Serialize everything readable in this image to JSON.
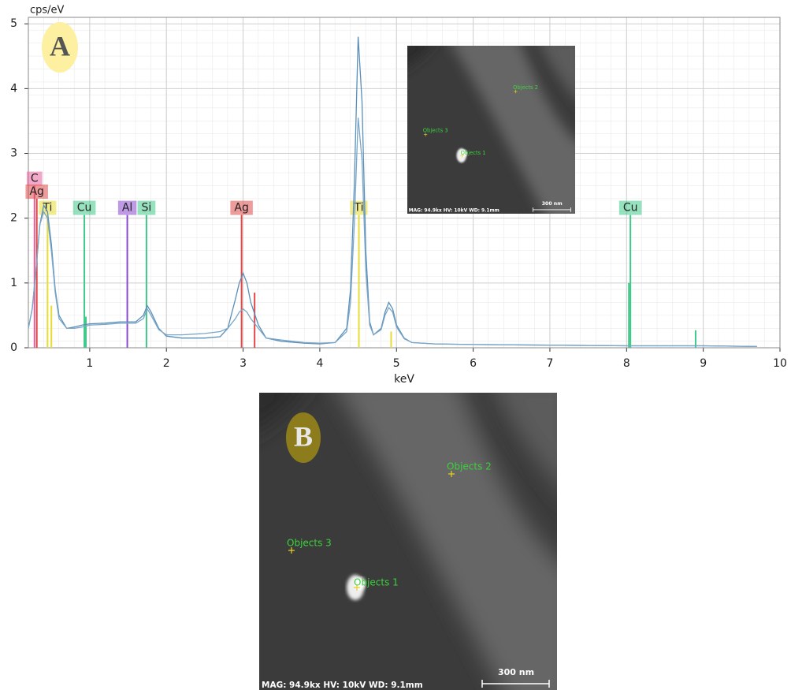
{
  "panel_labels": {
    "a": "A",
    "b": "B"
  },
  "chart_data": {
    "type": "line",
    "x_label": "keV",
    "y_label": "cps/eV",
    "xlim": [
      0.2,
      10
    ],
    "ylim": [
      0,
      5.1
    ],
    "xticks": [
      1,
      2,
      3,
      4,
      5,
      6,
      7,
      8,
      9,
      10
    ],
    "yticks": [
      0,
      1,
      2,
      3,
      4,
      5
    ],
    "grid": true,
    "series": [
      {
        "color": "#5b8fb8",
        "x": [
          0.2,
          0.25,
          0.3,
          0.35,
          0.4,
          0.45,
          0.5,
          0.55,
          0.6,
          0.7,
          0.8,
          0.9,
          1.0,
          1.2,
          1.4,
          1.6,
          1.7,
          1.75,
          1.8,
          1.9,
          2.0,
          2.2,
          2.5,
          2.7,
          2.8,
          2.9,
          2.95,
          3.0,
          3.05,
          3.1,
          3.2,
          3.3,
          3.5,
          3.8,
          4.0,
          4.2,
          4.35,
          4.4,
          4.45,
          4.5,
          4.55,
          4.6,
          4.65,
          4.7,
          4.8,
          4.85,
          4.9,
          4.95,
          5.0,
          5.1,
          5.2,
          5.5,
          6.0,
          7.0,
          8.0,
          9.0,
          9.7
        ],
        "values": [
          0.3,
          0.6,
          1.2,
          1.9,
          2.2,
          2.1,
          1.6,
          0.9,
          0.5,
          0.3,
          0.32,
          0.35,
          0.37,
          0.38,
          0.4,
          0.4,
          0.5,
          0.65,
          0.55,
          0.3,
          0.18,
          0.15,
          0.15,
          0.17,
          0.3,
          0.75,
          1.0,
          1.15,
          1.0,
          0.7,
          0.35,
          0.15,
          0.1,
          0.07,
          0.06,
          0.08,
          0.3,
          0.9,
          2.5,
          4.8,
          3.8,
          1.5,
          0.4,
          0.2,
          0.3,
          0.55,
          0.7,
          0.6,
          0.35,
          0.15,
          0.08,
          0.06,
          0.05,
          0.04,
          0.03,
          0.03,
          0.02
        ]
      },
      {
        "color": "#7aa6c8",
        "x": [
          0.2,
          0.25,
          0.3,
          0.35,
          0.4,
          0.45,
          0.5,
          0.55,
          0.6,
          0.7,
          0.8,
          0.9,
          1.0,
          1.2,
          1.4,
          1.6,
          1.7,
          1.75,
          1.8,
          1.9,
          2.0,
          2.2,
          2.5,
          2.7,
          2.8,
          2.9,
          2.95,
          3.0,
          3.05,
          3.1,
          3.2,
          3.3,
          3.5,
          3.8,
          4.0,
          4.2,
          4.35,
          4.4,
          4.45,
          4.5,
          4.55,
          4.6,
          4.65,
          4.7,
          4.8,
          4.85,
          4.9,
          4.95,
          5.0,
          5.1,
          5.2,
          5.5,
          6.0,
          7.0,
          8.0,
          9.0,
          9.7
        ],
        "values": [
          0.3,
          0.6,
          1.2,
          1.9,
          2.1,
          2.0,
          1.5,
          0.85,
          0.45,
          0.3,
          0.3,
          0.32,
          0.35,
          0.36,
          0.38,
          0.38,
          0.45,
          0.6,
          0.5,
          0.28,
          0.2,
          0.2,
          0.22,
          0.25,
          0.3,
          0.45,
          0.55,
          0.6,
          0.55,
          0.45,
          0.3,
          0.15,
          0.12,
          0.08,
          0.07,
          0.08,
          0.25,
          0.7,
          1.9,
          3.55,
          2.9,
          1.2,
          0.35,
          0.2,
          0.28,
          0.5,
          0.62,
          0.55,
          0.32,
          0.14,
          0.08,
          0.06,
          0.05,
          0.04,
          0.03,
          0.03,
          0.02
        ]
      }
    ],
    "element_markers": [
      {
        "label": "C",
        "energy": 0.28,
        "height": 2.5,
        "color": "#e8609a"
      },
      {
        "label": "Ag",
        "energy": 0.31,
        "height": 2.3,
        "color": "#e04848"
      },
      {
        "label": "Ti",
        "energy": 0.45,
        "height": 2.05,
        "color": "#e8dc30"
      },
      {
        "label": "Cu",
        "energy": 0.93,
        "height": 2.05,
        "color": "#40c888"
      },
      {
        "label": "Al",
        "energy": 1.49,
        "height": 2.05,
        "color": "#8a48d0"
      },
      {
        "label": "Si",
        "energy": 1.74,
        "height": 2.05,
        "color": "#40c888"
      },
      {
        "label": "Ag",
        "energy": 2.98,
        "height": 2.05,
        "color": "#e04848"
      },
      {
        "label": "Ti",
        "energy": 4.51,
        "height": 2.05,
        "color": "#e8dc30"
      },
      {
        "label": "Cu",
        "energy": 8.05,
        "height": 2.05,
        "color": "#40c888"
      }
    ],
    "element_lines": [
      {
        "energy": 0.5,
        "height": 0.65,
        "color": "#e8dc30"
      },
      {
        "energy": 0.95,
        "height": 0.48,
        "color": "#40c888"
      },
      {
        "energy": 3.15,
        "height": 0.85,
        "color": "#e04848"
      },
      {
        "energy": 4.93,
        "height": 0.25,
        "color": "#e8dc30"
      },
      {
        "energy": 8.03,
        "height": 1.0,
        "color": "#40c888"
      },
      {
        "energy": 8.9,
        "height": 0.27,
        "color": "#40c888"
      }
    ]
  },
  "sem_image": {
    "objects": [
      {
        "label": "Objects 1"
      },
      {
        "label": "Objects 2"
      },
      {
        "label": "Objects 3"
      }
    ],
    "info_text": "MAG: 94.9kx HV: 10kV WD: 9.1mm",
    "scale_bar_label": "300 nm"
  }
}
